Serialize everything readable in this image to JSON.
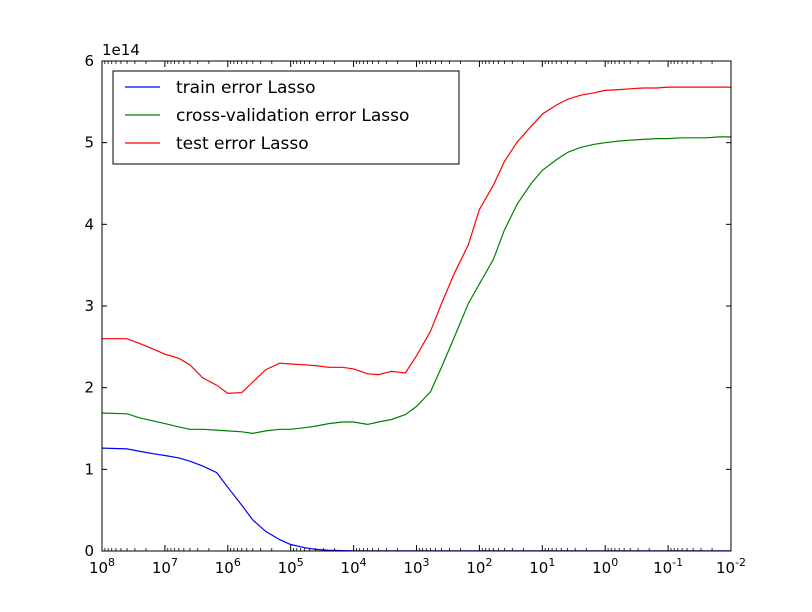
{
  "chart_data": {
    "type": "line",
    "title": "",
    "xlabel": "",
    "ylabel": "",
    "x_scale": "log",
    "x_reversed": true,
    "xlim": [
      100000000,
      0.01
    ],
    "ylim": [
      0,
      600000000000000
    ],
    "y_offset_label": "1e14",
    "y_ticks": [
      0,
      1,
      2,
      3,
      4,
      5,
      6
    ],
    "x_ticks": [
      {
        "value": 100000000,
        "base": "10",
        "exp": "8"
      },
      {
        "value": 10000000,
        "base": "10",
        "exp": "7"
      },
      {
        "value": 1000000,
        "base": "10",
        "exp": "6"
      },
      {
        "value": 100000,
        "base": "10",
        "exp": "5"
      },
      {
        "value": 10000,
        "base": "10",
        "exp": "4"
      },
      {
        "value": 1000,
        "base": "10",
        "exp": "3"
      },
      {
        "value": 100,
        "base": "10",
        "exp": "2"
      },
      {
        "value": 10,
        "base": "10",
        "exp": "1"
      },
      {
        "value": 1,
        "base": "10",
        "exp": "0"
      },
      {
        "value": 0.1,
        "base": "10",
        "exp": "-1"
      },
      {
        "value": 0.01,
        "base": "10",
        "exp": "-2"
      }
    ],
    "grid": false,
    "legend_position": "top-left",
    "x": [
      100000000,
      40000000,
      25000000,
      15000000,
      10000000,
      6000000,
      4000000,
      2500000,
      1500000,
      1000000,
      600000,
      400000,
      250000,
      150000,
      100000,
      60000,
      40000,
      25000,
      15000,
      10000,
      6000,
      4000,
      2500,
      1500,
      1000,
      600,
      400,
      250,
      150,
      100,
      60,
      40,
      25,
      15,
      10,
      6,
      4,
      2.5,
      1.5,
      1,
      0.6,
      0.4,
      0.25,
      0.15,
      0.1,
      0.06,
      0.04,
      0.025,
      0.015,
      0.01
    ],
    "series": [
      {
        "name": "train error Lasso",
        "color": "#0000ff",
        "values": [
          1.26,
          1.25,
          1.22,
          1.19,
          1.17,
          1.14,
          1.1,
          1.04,
          0.96,
          0.78,
          0.56,
          0.38,
          0.24,
          0.14,
          0.08,
          0.04,
          0.02,
          0.01,
          0.005,
          0.003,
          0.002,
          0.001,
          0.001,
          0.001,
          0.001,
          0.001,
          0.001,
          0.001,
          0.001,
          0.001,
          0.001,
          0.001,
          0.001,
          0.001,
          0.001,
          0.001,
          0.001,
          0.001,
          0.001,
          0.001,
          0.001,
          0.001,
          0.001,
          0.001,
          0.001,
          0.001,
          0.001,
          0.001,
          0.001,
          0.001
        ]
      },
      {
        "name": "cross-validation error Lasso",
        "color": "#008000",
        "values": [
          1.69,
          1.68,
          1.63,
          1.59,
          1.56,
          1.52,
          1.49,
          1.49,
          1.48,
          1.47,
          1.46,
          1.44,
          1.47,
          1.49,
          1.49,
          1.51,
          1.53,
          1.56,
          1.58,
          1.58,
          1.55,
          1.58,
          1.61,
          1.67,
          1.77,
          1.95,
          2.25,
          2.62,
          3.03,
          3.27,
          3.57,
          3.93,
          4.25,
          4.5,
          4.66,
          4.79,
          4.88,
          4.94,
          4.98,
          5.0,
          5.02,
          5.03,
          5.04,
          5.05,
          5.05,
          5.06,
          5.06,
          5.06,
          5.07,
          5.07
        ]
      },
      {
        "name": "test error Lasso",
        "color": "#ff0000",
        "values": [
          2.6,
          2.6,
          2.54,
          2.47,
          2.41,
          2.36,
          2.28,
          2.12,
          2.03,
          1.93,
          1.94,
          2.07,
          2.22,
          2.3,
          2.29,
          2.28,
          2.27,
          2.25,
          2.25,
          2.23,
          2.17,
          2.16,
          2.2,
          2.18,
          2.39,
          2.69,
          3.03,
          3.4,
          3.75,
          4.18,
          4.48,
          4.77,
          5.01,
          5.2,
          5.35,
          5.46,
          5.53,
          5.58,
          5.61,
          5.64,
          5.65,
          5.66,
          5.67,
          5.67,
          5.68,
          5.68,
          5.68,
          5.68,
          5.68,
          5.68
        ]
      }
    ]
  }
}
